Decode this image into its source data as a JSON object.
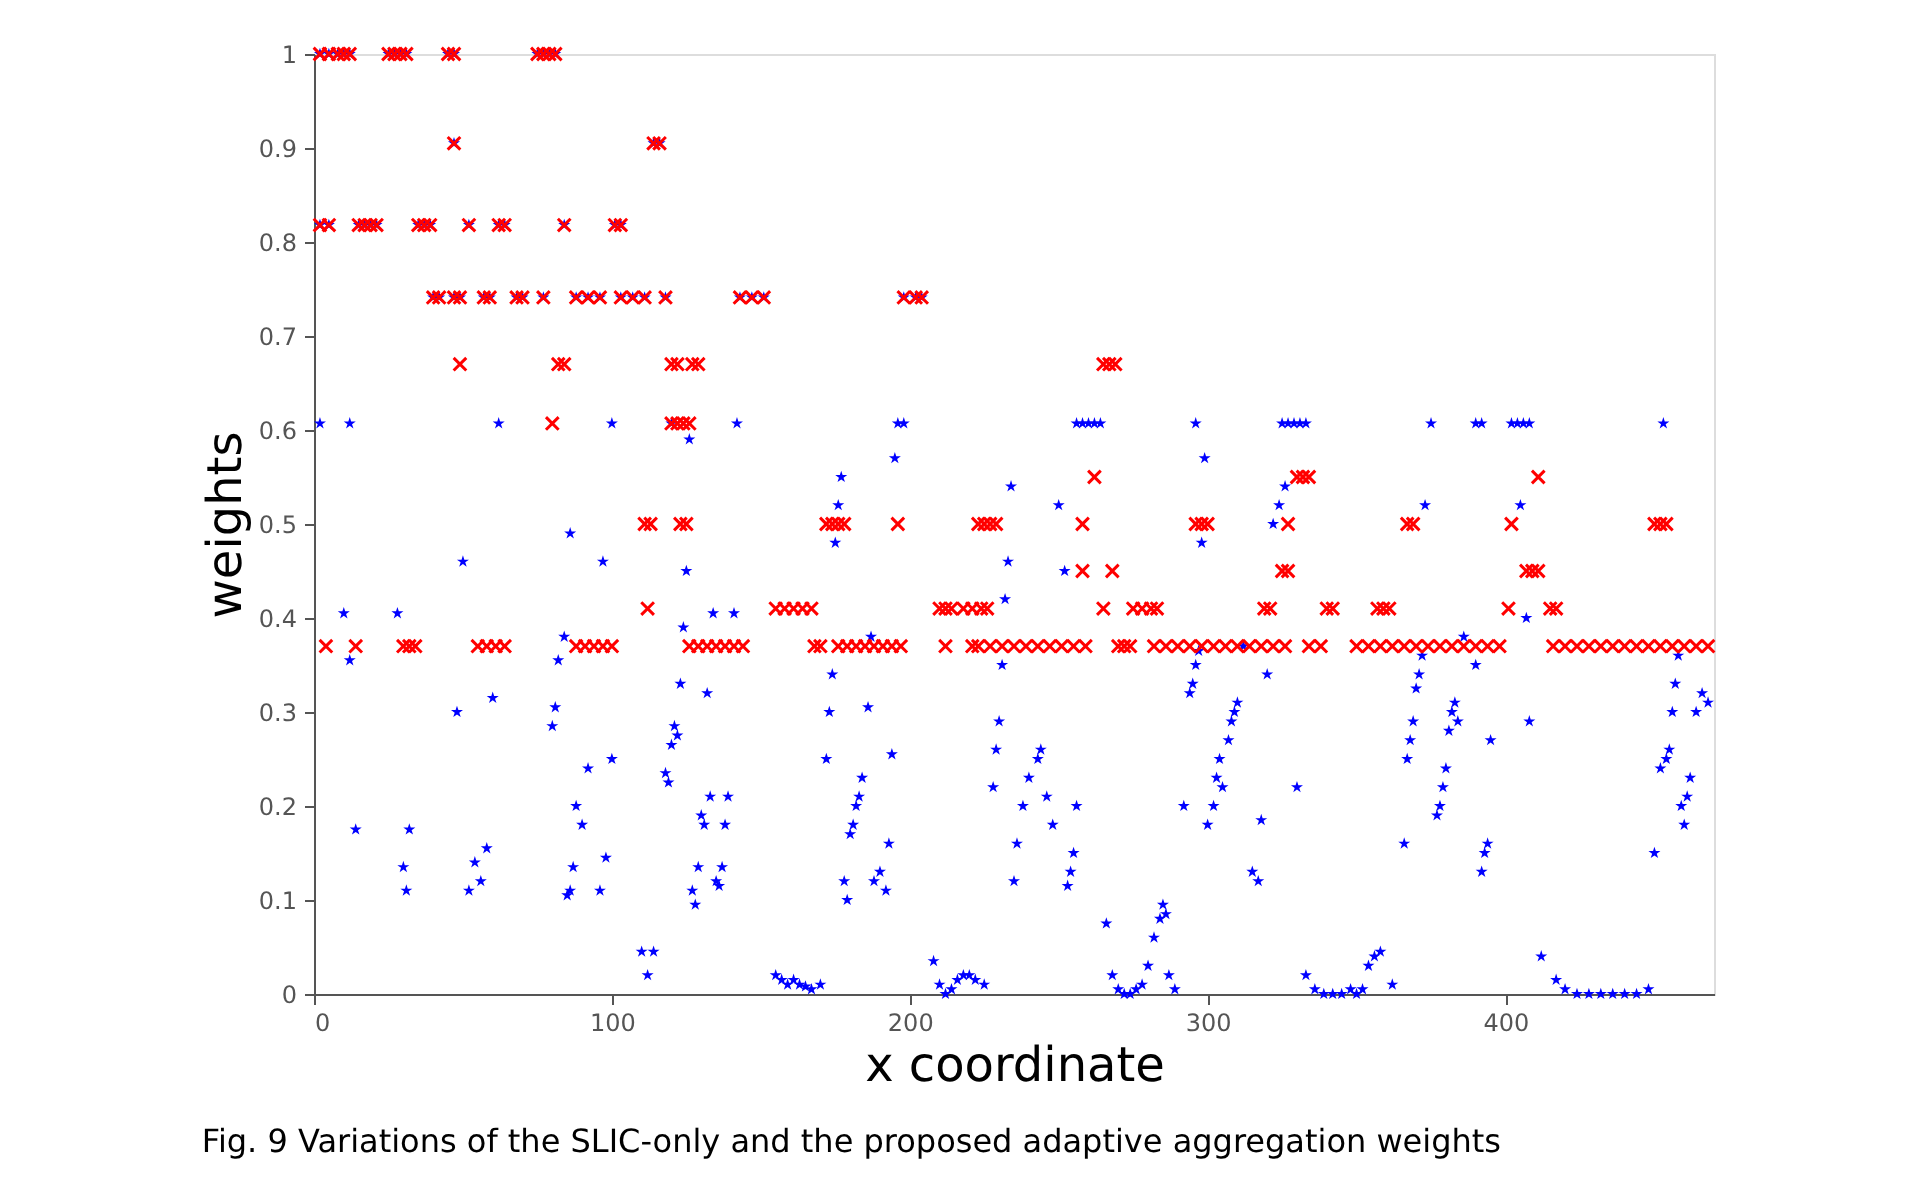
{
  "chart_data": {
    "type": "scatter",
    "xlabel": "x coordinate",
    "ylabel": "weights",
    "xlim": [
      0,
      470
    ],
    "xticks": [
      0,
      100,
      200,
      300,
      400
    ],
    "ylim": [
      0,
      1
    ],
    "yticks": [
      0,
      0.1,
      0.2,
      0.3,
      0.4,
      0.5,
      0.6,
      0.7,
      0.8,
      0.9,
      1
    ],
    "grid": false,
    "annotations": [
      "Fig. 9 Variations of the SLIC-only and the proposed adaptive aggregation weights"
    ],
    "series": [
      {
        "color": "#0000ff",
        "marker": "star",
        "x": [
          2,
          5,
          8,
          10,
          12,
          25,
          27,
          29,
          31,
          45,
          47,
          75,
          77,
          79,
          81,
          47,
          114,
          116,
          2,
          5,
          15,
          17,
          19,
          21,
          35,
          37,
          39,
          52,
          62,
          64,
          84,
          101,
          103,
          40,
          42,
          47,
          49,
          57,
          59,
          68,
          70,
          77,
          88,
          92,
          96,
          103,
          107,
          111,
          118,
          143,
          147,
          151,
          198,
          202,
          204,
          2,
          12,
          62,
          100,
          120,
          142,
          196,
          198,
          256,
          258,
          260,
          262,
          264,
          296,
          325,
          327,
          329,
          331,
          333,
          375,
          390,
          392,
          402,
          404,
          406,
          408,
          453,
          10,
          12,
          14,
          28,
          30,
          31,
          32,
          50,
          48,
          52,
          54,
          56,
          58,
          60,
          80,
          81,
          82,
          84,
          86,
          85,
          86,
          87,
          88,
          90,
          92,
          96,
          98,
          100,
          97,
          110,
          112,
          114,
          118,
          119,
          120,
          121,
          122,
          123,
          124,
          125,
          126,
          127,
          128,
          129,
          131,
          130,
          133,
          132,
          134,
          135,
          136,
          137,
          139,
          141,
          138,
          155,
          157,
          159,
          161,
          163,
          165,
          167,
          170,
          172,
          173,
          174,
          175,
          176,
          177,
          178,
          179,
          180,
          181,
          182,
          183,
          184,
          186,
          187,
          188,
          190,
          192,
          193,
          194,
          195,
          208,
          210,
          212,
          214,
          216,
          218,
          220,
          222,
          225,
          228,
          229,
          230,
          231,
          232,
          233,
          234,
          235,
          236,
          238,
          240,
          243,
          244,
          246,
          248,
          250,
          252,
          253,
          254,
          255,
          256,
          266,
          268,
          270,
          272,
          274,
          276,
          278,
          280,
          282,
          284,
          285,
          286,
          287,
          289,
          292,
          294,
          295,
          296,
          297,
          298,
          299,
          300,
          302,
          303,
          304,
          305,
          307,
          308,
          309,
          310,
          312,
          315,
          317,
          318,
          320,
          322,
          324,
          326,
          330,
          333,
          336,
          339,
          342,
          345,
          348,
          350,
          352,
          354,
          356,
          358,
          362,
          366,
          367,
          368,
          369,
          370,
          371,
          372,
          373,
          377,
          378,
          379,
          380,
          381,
          382,
          383,
          384,
          386,
          390,
          392,
          393,
          394,
          395,
          405,
          407,
          408,
          412,
          417,
          420,
          424,
          428,
          432,
          436,
          440,
          444,
          448,
          450,
          452,
          454,
          455,
          456,
          457,
          458,
          459,
          460,
          461,
          462,
          464,
          466,
          468
        ],
        "values": [
          1,
          1,
          1,
          1,
          1,
          1,
          1,
          1,
          1,
          1,
          1,
          1,
          1,
          1,
          1,
          0.905,
          0.905,
          0.905,
          0.818,
          0.818,
          0.818,
          0.818,
          0.818,
          0.818,
          0.818,
          0.818,
          0.818,
          0.818,
          0.818,
          0.818,
          0.818,
          0.818,
          0.818,
          0.741,
          0.741,
          0.741,
          0.741,
          0.741,
          0.741,
          0.741,
          0.741,
          0.741,
          0.741,
          0.741,
          0.741,
          0.741,
          0.741,
          0.741,
          0.741,
          0.741,
          0.741,
          0.741,
          0.741,
          0.741,
          0.741,
          0.607,
          0.607,
          0.607,
          0.607,
          0.607,
          0.607,
          0.607,
          0.607,
          0.607,
          0.607,
          0.607,
          0.607,
          0.607,
          0.607,
          0.607,
          0.607,
          0.607,
          0.607,
          0.607,
          0.607,
          0.607,
          0.607,
          0.607,
          0.607,
          0.607,
          0.607,
          0.607,
          0.405,
          0.355,
          0.175,
          0.405,
          0.135,
          0.11,
          0.175,
          0.46,
          0.3,
          0.11,
          0.14,
          0.12,
          0.155,
          0.315,
          0.285,
          0.305,
          0.355,
          0.38,
          0.49,
          0.105,
          0.11,
          0.135,
          0.2,
          0.18,
          0.24,
          0.11,
          0.145,
          0.25,
          0.46,
          0.045,
          0.02,
          0.045,
          0.235,
          0.225,
          0.265,
          0.285,
          0.275,
          0.33,
          0.39,
          0.45,
          0.59,
          0.11,
          0.095,
          0.135,
          0.18,
          0.19,
          0.21,
          0.32,
          0.405,
          0.12,
          0.115,
          0.135,
          0.21,
          0.405,
          0.18,
          0.02,
          0.015,
          0.01,
          0.015,
          0.01,
          0.008,
          0.005,
          0.01,
          0.25,
          0.3,
          0.34,
          0.48,
          0.52,
          0.55,
          0.12,
          0.1,
          0.17,
          0.18,
          0.2,
          0.21,
          0.23,
          0.305,
          0.38,
          0.12,
          0.13,
          0.11,
          0.16,
          0.255,
          0.57,
          0.035,
          0.01,
          0.0,
          0.005,
          0.015,
          0.02,
          0.02,
          0.015,
          0.01,
          0.22,
          0.26,
          0.29,
          0.35,
          0.42,
          0.46,
          0.54,
          0.12,
          0.16,
          0.2,
          0.23,
          0.25,
          0.26,
          0.21,
          0.18,
          0.52,
          0.45,
          0.115,
          0.13,
          0.15,
          0.2,
          0.075,
          0.02,
          0.005,
          0.0,
          0.0,
          0.005,
          0.01,
          0.03,
          0.06,
          0.08,
          0.095,
          0.085,
          0.02,
          0.005,
          0.2,
          0.32,
          0.33,
          0.35,
          0.365,
          0.48,
          0.57,
          0.18,
          0.2,
          0.23,
          0.25,
          0.22,
          0.27,
          0.29,
          0.3,
          0.31,
          0.37,
          0.13,
          0.12,
          0.185,
          0.34,
          0.5,
          0.52,
          0.54,
          0.22,
          0.02,
          0.005,
          0.0,
          0.0,
          0.0,
          0.005,
          0.0,
          0.005,
          0.03,
          0.04,
          0.045,
          0.01,
          0.16,
          0.25,
          0.27,
          0.29,
          0.325,
          0.34,
          0.36,
          0.52,
          0.19,
          0.2,
          0.22,
          0.24,
          0.28,
          0.3,
          0.31,
          0.29,
          0.38,
          0.35,
          0.13,
          0.15,
          0.16,
          0.27,
          0.52,
          0.4,
          0.29,
          0.04,
          0.015,
          0.005,
          0.0,
          0.0,
          0.0,
          0.0,
          0.0,
          0.0,
          0.005,
          0.15,
          0.24,
          0.25,
          0.26,
          0.3,
          0.33,
          0.36,
          0.2,
          0.18,
          0.21,
          0.23,
          0.3,
          0.32,
          0.31
        ]
      },
      {
        "color": "#ff0000",
        "marker": "cross",
        "x": [
          2,
          5,
          8,
          10,
          12,
          25,
          27,
          29,
          31,
          45,
          47,
          75,
          77,
          79,
          81,
          47,
          114,
          116,
          2,
          5,
          15,
          17,
          19,
          21,
          35,
          37,
          39,
          52,
          62,
          64,
          84,
          101,
          103,
          40,
          42,
          47,
          49,
          57,
          59,
          68,
          70,
          77,
          88,
          92,
          96,
          103,
          107,
          111,
          118,
          143,
          147,
          151,
          198,
          202,
          204,
          49,
          82,
          84,
          120,
          122,
          127,
          129,
          265,
          267,
          269,
          80,
          120,
          122,
          124,
          126,
          262,
          330,
          332,
          334,
          411,
          111,
          113,
          123,
          125,
          172,
          174,
          176,
          178,
          196,
          223,
          225,
          227,
          229,
          258,
          296,
          298,
          300,
          327,
          367,
          369,
          402,
          450,
          452,
          454,
          258,
          268,
          325,
          327,
          407,
          409,
          411,
          112,
          155,
          158,
          161,
          164,
          167,
          210,
          212,
          214,
          218,
          221,
          224,
          226,
          265,
          275,
          278,
          281,
          283,
          319,
          321,
          340,
          342,
          357,
          359,
          361,
          401,
          415,
          417,
          4,
          14,
          30,
          32,
          34,
          55,
          58,
          61,
          64,
          88,
          91,
          94,
          97,
          100,
          126,
          129,
          132,
          135,
          138,
          141,
          144,
          168,
          170,
          176,
          179,
          182,
          185,
          188,
          191,
          194,
          197,
          212,
          221,
          223,
          227,
          231,
          235,
          239,
          243,
          247,
          251,
          255,
          259,
          270,
          272,
          274,
          282,
          286,
          290,
          294,
          298,
          302,
          306,
          310,
          314,
          318,
          322,
          326,
          334,
          338,
          350,
          354,
          358,
          362,
          366,
          370,
          374,
          378,
          382,
          386,
          390,
          394,
          398,
          416,
          420,
          424,
          428,
          432,
          436,
          440,
          444,
          448,
          452,
          456,
          460,
          464,
          468
        ],
        "values": [
          1,
          1,
          1,
          1,
          1,
          1,
          1,
          1,
          1,
          1,
          1,
          1,
          1,
          1,
          1,
          0.905,
          0.905,
          0.905,
          0.818,
          0.818,
          0.818,
          0.818,
          0.818,
          0.818,
          0.818,
          0.818,
          0.818,
          0.818,
          0.818,
          0.818,
          0.818,
          0.818,
          0.818,
          0.741,
          0.741,
          0.741,
          0.741,
          0.741,
          0.741,
          0.741,
          0.741,
          0.741,
          0.741,
          0.741,
          0.741,
          0.741,
          0.741,
          0.741,
          0.741,
          0.741,
          0.741,
          0.741,
          0.741,
          0.741,
          0.741,
          0.67,
          0.67,
          0.67,
          0.67,
          0.67,
          0.67,
          0.67,
          0.67,
          0.67,
          0.67,
          0.607,
          0.607,
          0.607,
          0.607,
          0.607,
          0.55,
          0.55,
          0.55,
          0.55,
          0.55,
          0.5,
          0.5,
          0.5,
          0.5,
          0.5,
          0.5,
          0.5,
          0.5,
          0.5,
          0.5,
          0.5,
          0.5,
          0.5,
          0.5,
          0.5,
          0.5,
          0.5,
          0.5,
          0.5,
          0.5,
          0.5,
          0.5,
          0.5,
          0.5,
          0.45,
          0.45,
          0.45,
          0.45,
          0.45,
          0.45,
          0.45,
          0.41,
          0.41,
          0.41,
          0.41,
          0.41,
          0.41,
          0.41,
          0.41,
          0.41,
          0.41,
          0.41,
          0.41,
          0.41,
          0.41,
          0.41,
          0.41,
          0.41,
          0.41,
          0.41,
          0.41,
          0.41,
          0.41,
          0.41,
          0.41,
          0.41,
          0.41,
          0.41,
          0.41,
          0.37,
          0.37,
          0.37,
          0.37,
          0.37,
          0.37,
          0.37,
          0.37,
          0.37,
          0.37,
          0.37,
          0.37,
          0.37,
          0.37,
          0.37,
          0.37,
          0.37,
          0.37,
          0.37,
          0.37,
          0.37,
          0.37,
          0.37,
          0.37,
          0.37,
          0.37,
          0.37,
          0.37,
          0.37,
          0.37,
          0.37,
          0.37,
          0.37,
          0.37,
          0.37,
          0.37,
          0.37,
          0.37,
          0.37,
          0.37,
          0.37,
          0.37,
          0.37,
          0.37,
          0.37,
          0.37,
          0.37,
          0.37,
          0.37,
          0.37,
          0.37,
          0.37,
          0.37,
          0.37,
          0.37,
          0.37,
          0.37,
          0.37,
          0.37,
          0.37,
          0.37,
          0.37,
          0.37,
          0.37,
          0.37,
          0.37,
          0.37,
          0.37,
          0.37,
          0.37,
          0.37,
          0.37,
          0.37,
          0.37,
          0.37,
          0.37,
          0.37,
          0.37,
          0.37,
          0.37,
          0.37,
          0.37,
          0.37,
          0.37,
          0.37,
          0.37,
          0.37
        ]
      }
    ]
  }
}
